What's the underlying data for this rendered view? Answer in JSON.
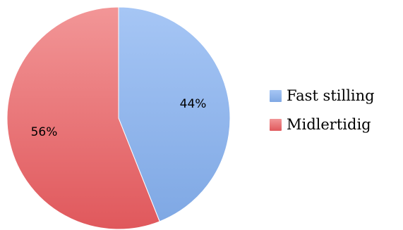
{
  "chart_data": {
    "type": "pie",
    "title": "",
    "categories": [
      "Fast stilling",
      "Midlertidig"
    ],
    "values": [
      44,
      56
    ],
    "labels": [
      "44%",
      "56%"
    ],
    "colors": [
      "#7fa8e4",
      "#e0585c"
    ],
    "colors_light": [
      "#a6c6f5",
      "#f29697"
    ],
    "start_angle": "12 o'clock",
    "direction": "clockwise",
    "legend_placement": "right"
  }
}
